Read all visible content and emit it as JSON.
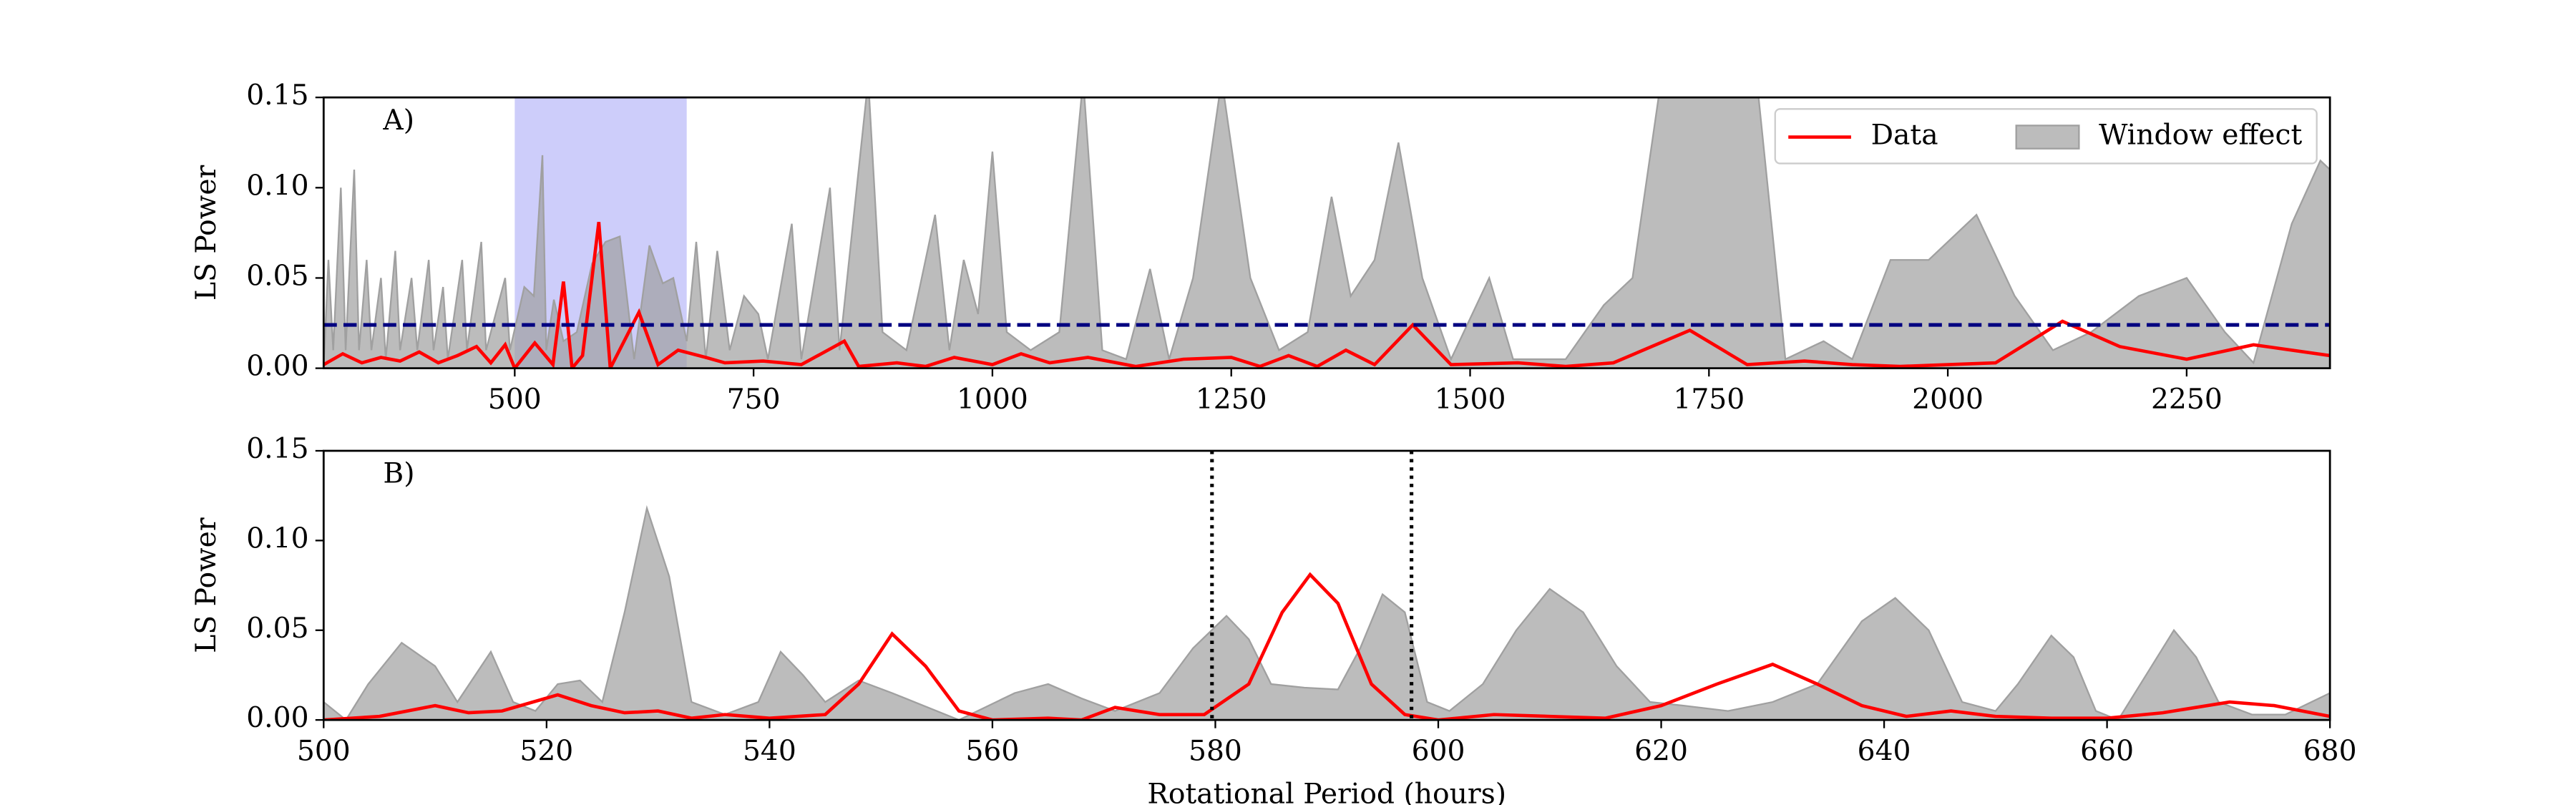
{
  "chart_data": [
    {
      "type": "line",
      "annotation": "A)",
      "ylabel": "LS Power",
      "xlim": [
        300,
        2400
      ],
      "xticks": [
        500,
        750,
        1000,
        1250,
        1500,
        1750,
        2000,
        2250
      ],
      "ylim": [
        0,
        0.15
      ],
      "yticks": [
        {
          "value": 0,
          "label": "0.00"
        },
        0.05,
        {
          "value": 0.1,
          "label": "0.10"
        },
        0.15
      ],
      "highlight": [
        500,
        680
      ],
      "highlight_color": "#c8c8fa",
      "threshold": 0.024,
      "threshold_color": "#000080",
      "legend": "upper right",
      "series": [
        {
          "name": "Data",
          "color": "#ff0000",
          "style": "line",
          "x": [
            300,
            320,
            340,
            360,
            380,
            400,
            420,
            440,
            460,
            475,
            490,
            500,
            521,
            540,
            551,
            560,
            571,
            588,
            600,
            630,
            650,
            671,
            700,
            720,
            760,
            800,
            845,
            860,
            900,
            930,
            960,
            1000,
            1030,
            1060,
            1100,
            1150,
            1200,
            1250,
            1280,
            1310,
            1340,
            1370,
            1400,
            1440,
            1480,
            1550,
            1600,
            1650,
            1730,
            1790,
            1850,
            1900,
            1950,
            2050,
            2120,
            2180,
            2250,
            2320,
            2400
          ],
          "values": [
            0.002,
            0.008,
            0.003,
            0.006,
            0.004,
            0.009,
            0.003,
            0.007,
            0.012,
            0.003,
            0.013,
            0.0,
            0.014,
            0.002,
            0.048,
            0.0,
            0.007,
            0.081,
            0.0,
            0.031,
            0.002,
            0.01,
            0.006,
            0.003,
            0.004,
            0.002,
            0.015,
            0.001,
            0.003,
            0.001,
            0.006,
            0.002,
            0.008,
            0.003,
            0.006,
            0.001,
            0.005,
            0.006,
            0.001,
            0.007,
            0.001,
            0.01,
            0.002,
            0.024,
            0.002,
            0.003,
            0.001,
            0.003,
            0.021,
            0.002,
            0.004,
            0.002,
            0.001,
            0.003,
            0.026,
            0.012,
            0.005,
            0.013,
            0.007
          ]
        },
        {
          "name": "Window effect",
          "color": "#a0a0a0",
          "style": "area",
          "x": [
            300,
            305,
            310,
            318,
            323,
            332,
            337,
            345,
            350,
            360,
            365,
            375,
            380,
            392,
            398,
            410,
            415,
            425,
            430,
            445,
            450,
            465,
            470,
            490,
            495,
            510,
            520,
            529,
            533,
            541,
            551,
            565,
            581,
            595,
            610,
            625,
            641,
            655,
            666,
            680,
            690,
            700,
            712,
            725,
            740,
            755,
            765,
            790,
            800,
            830,
            840,
            870,
            885,
            910,
            940,
            955,
            970,
            985,
            1000,
            1015,
            1040,
            1070,
            1095,
            1115,
            1140,
            1165,
            1185,
            1210,
            1240,
            1270,
            1300,
            1330,
            1355,
            1375,
            1400,
            1425,
            1450,
            1480,
            1520,
            1545,
            1600,
            1640,
            1670,
            1700,
            1800,
            1830,
            1870,
            1900,
            1940,
            1980,
            2030,
            2070,
            2110,
            2150,
            2200,
            2250,
            2290,
            2320,
            2360,
            2390,
            2400
          ],
          "values": [
            0.0,
            0.06,
            0.01,
            0.1,
            0.01,
            0.11,
            0.01,
            0.06,
            0.01,
            0.05,
            0.005,
            0.065,
            0.01,
            0.05,
            0.01,
            0.06,
            0.01,
            0.045,
            0.005,
            0.06,
            0.01,
            0.07,
            0.01,
            0.05,
            0.01,
            0.045,
            0.04,
            0.118,
            0.01,
            0.038,
            0.015,
            0.02,
            0.058,
            0.07,
            0.073,
            0.005,
            0.068,
            0.047,
            0.05,
            0.015,
            0.07,
            0.005,
            0.065,
            0.01,
            0.04,
            0.03,
            0.005,
            0.08,
            0.005,
            0.1,
            0.01,
            0.16,
            0.02,
            0.01,
            0.085,
            0.01,
            0.06,
            0.03,
            0.12,
            0.02,
            0.01,
            0.02,
            0.16,
            0.01,
            0.005,
            0.055,
            0.005,
            0.05,
            0.16,
            0.05,
            0.01,
            0.02,
            0.095,
            0.04,
            0.06,
            0.125,
            0.05,
            0.005,
            0.05,
            0.005,
            0.005,
            0.035,
            0.05,
            0.16,
            0.16,
            0.005,
            0.015,
            0.005,
            0.06,
            0.06,
            0.085,
            0.04,
            0.01,
            0.02,
            0.04,
            0.05,
            0.02,
            0.003,
            0.08,
            0.115,
            0.11
          ]
        }
      ]
    },
    {
      "type": "line",
      "annotation": "B)",
      "ylabel": "LS Power",
      "xlabel": "Rotational Period (hours)",
      "xlim": [
        500,
        680
      ],
      "xticks": [
        500,
        520,
        540,
        560,
        580,
        600,
        620,
        640,
        660,
        680
      ],
      "ylim": [
        0,
        0.15
      ],
      "yticks": [
        {
          "value": 0,
          "label": "0.00"
        },
        0.05,
        {
          "value": 0.1,
          "label": "0.10"
        },
        0.15
      ],
      "vlines": [
        579.7,
        597.6
      ],
      "series": [
        {
          "name": "Data",
          "color": "#ff0000",
          "style": "line",
          "x": [
            500,
            505,
            510,
            513,
            516,
            521,
            524,
            527,
            530,
            533,
            536,
            540,
            545,
            548,
            551,
            554,
            557,
            560,
            565,
            568,
            571,
            575,
            579,
            583,
            586,
            588.5,
            591,
            594,
            597,
            600,
            605,
            610,
            615,
            620,
            625,
            630,
            634,
            638,
            642,
            646,
            650,
            655,
            660,
            665,
            671,
            675,
            680
          ],
          "values": [
            0.0,
            0.002,
            0.008,
            0.004,
            0.005,
            0.014,
            0.008,
            0.004,
            0.005,
            0.001,
            0.003,
            0.001,
            0.003,
            0.02,
            0.048,
            0.03,
            0.005,
            0.0,
            0.001,
            0.0,
            0.007,
            0.003,
            0.003,
            0.02,
            0.06,
            0.081,
            0.065,
            0.02,
            0.003,
            0.0,
            0.003,
            0.002,
            0.001,
            0.008,
            0.02,
            0.031,
            0.02,
            0.008,
            0.002,
            0.005,
            0.002,
            0.001,
            0.001,
            0.004,
            0.01,
            0.008,
            0.002
          ]
        },
        {
          "name": "Window effect",
          "color": "#a0a0a0",
          "style": "area",
          "x": [
            500,
            502,
            504,
            507,
            510,
            512,
            515,
            517,
            519,
            521,
            523,
            525,
            527,
            529,
            531,
            533,
            536,
            539,
            541,
            543,
            545,
            548,
            551,
            553,
            557,
            562,
            565,
            568,
            571,
            575,
            578,
            581,
            583,
            585,
            588,
            591,
            593,
            595,
            597,
            599,
            601,
            604,
            607,
            610,
            613,
            616,
            619,
            622,
            626,
            630,
            634,
            638,
            641,
            644,
            647,
            650,
            652,
            655,
            657,
            659,
            661,
            664,
            666,
            668,
            670,
            673,
            676,
            680
          ],
          "values": [
            0.01,
            0.0,
            0.02,
            0.043,
            0.03,
            0.01,
            0.038,
            0.01,
            0.005,
            0.02,
            0.022,
            0.01,
            0.06,
            0.118,
            0.08,
            0.01,
            0.003,
            0.01,
            0.038,
            0.025,
            0.01,
            0.022,
            0.015,
            0.01,
            0.0,
            0.015,
            0.02,
            0.012,
            0.005,
            0.015,
            0.04,
            0.058,
            0.045,
            0.02,
            0.018,
            0.017,
            0.04,
            0.07,
            0.06,
            0.01,
            0.005,
            0.02,
            0.05,
            0.073,
            0.06,
            0.03,
            0.01,
            0.008,
            0.005,
            0.01,
            0.02,
            0.055,
            0.068,
            0.05,
            0.01,
            0.005,
            0.02,
            0.047,
            0.035,
            0.005,
            0.0,
            0.03,
            0.05,
            0.035,
            0.01,
            0.003,
            0.003,
            0.015
          ]
        }
      ]
    }
  ]
}
